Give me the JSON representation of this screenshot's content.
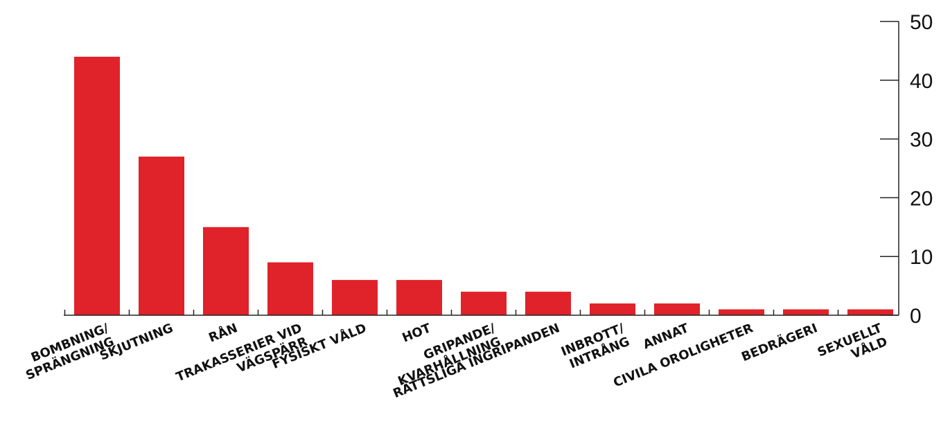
{
  "chart_data": {
    "type": "bar",
    "title": "",
    "xlabel": "",
    "ylabel": "",
    "ylim": [
      0,
      50
    ],
    "yticks": [
      0,
      10,
      20,
      30,
      40,
      50
    ],
    "y_axis_side": "right",
    "grid": false,
    "legend": "none",
    "bar_color": "#e0222a",
    "categories": [
      [
        "BOMBNING/",
        "SPRÄNGNING"
      ],
      [
        "SKJUTNING"
      ],
      [
        "RÅN"
      ],
      [
        "TRAKASSERIER VID",
        "VÄGSPÄRR"
      ],
      [
        "FYSISKT VÅLD"
      ],
      [
        "HOT"
      ],
      [
        "GRIPANDE/",
        "KVARHÅLLNING"
      ],
      [
        "RÄTTSLIGA INGRIPANDEN"
      ],
      [
        "INBROTT/",
        "INTRÅNG"
      ],
      [
        "ANNAT"
      ],
      [
        "CIVILA OROLIGHETER"
      ],
      [
        "BEDRÄGERI"
      ],
      [
        "SEXUELLT",
        "VÅLD"
      ]
    ],
    "values": [
      44,
      27,
      15,
      9,
      6,
      6,
      4,
      4,
      2,
      2,
      1,
      1,
      1
    ]
  }
}
